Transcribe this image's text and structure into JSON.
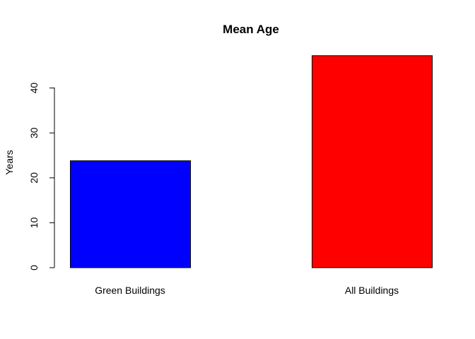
{
  "chart_data": {
    "type": "bar",
    "title": "Mean Age",
    "xlabel": "",
    "ylabel": "Years",
    "categories": [
      "Green Buildings",
      "All Buildings"
    ],
    "values": [
      23.8,
      47.2
    ],
    "colors": [
      "#0000ff",
      "#ff0000"
    ],
    "yticks": [
      0,
      10,
      20,
      30,
      40
    ],
    "ylim": [
      0,
      48
    ],
    "grid": false,
    "legend": "none"
  }
}
